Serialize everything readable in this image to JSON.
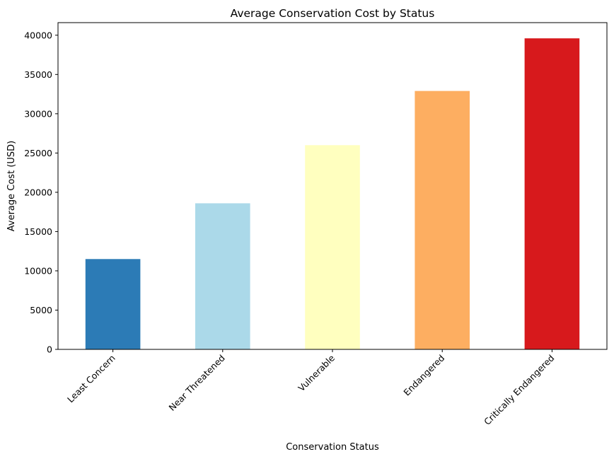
{
  "chart_data": {
    "type": "bar",
    "title": "Average Conservation Cost by Status",
    "xlabel": "Conservation Status",
    "ylabel": "Average Cost (USD)",
    "categories": [
      "Least Concern",
      "Near Threatened",
      "Vulnerable",
      "Endangered",
      "Critically Endangered"
    ],
    "values": [
      11500,
      18600,
      26000,
      32900,
      39600
    ],
    "colors": [
      "#2c7bb6",
      "#abd9e9",
      "#ffffbf",
      "#fdae61",
      "#d7191c"
    ],
    "ylim": [
      0,
      41600
    ],
    "yticks": [
      0,
      5000,
      10000,
      15000,
      20000,
      25000,
      30000,
      35000,
      40000
    ],
    "grid": false,
    "legend": "none"
  }
}
